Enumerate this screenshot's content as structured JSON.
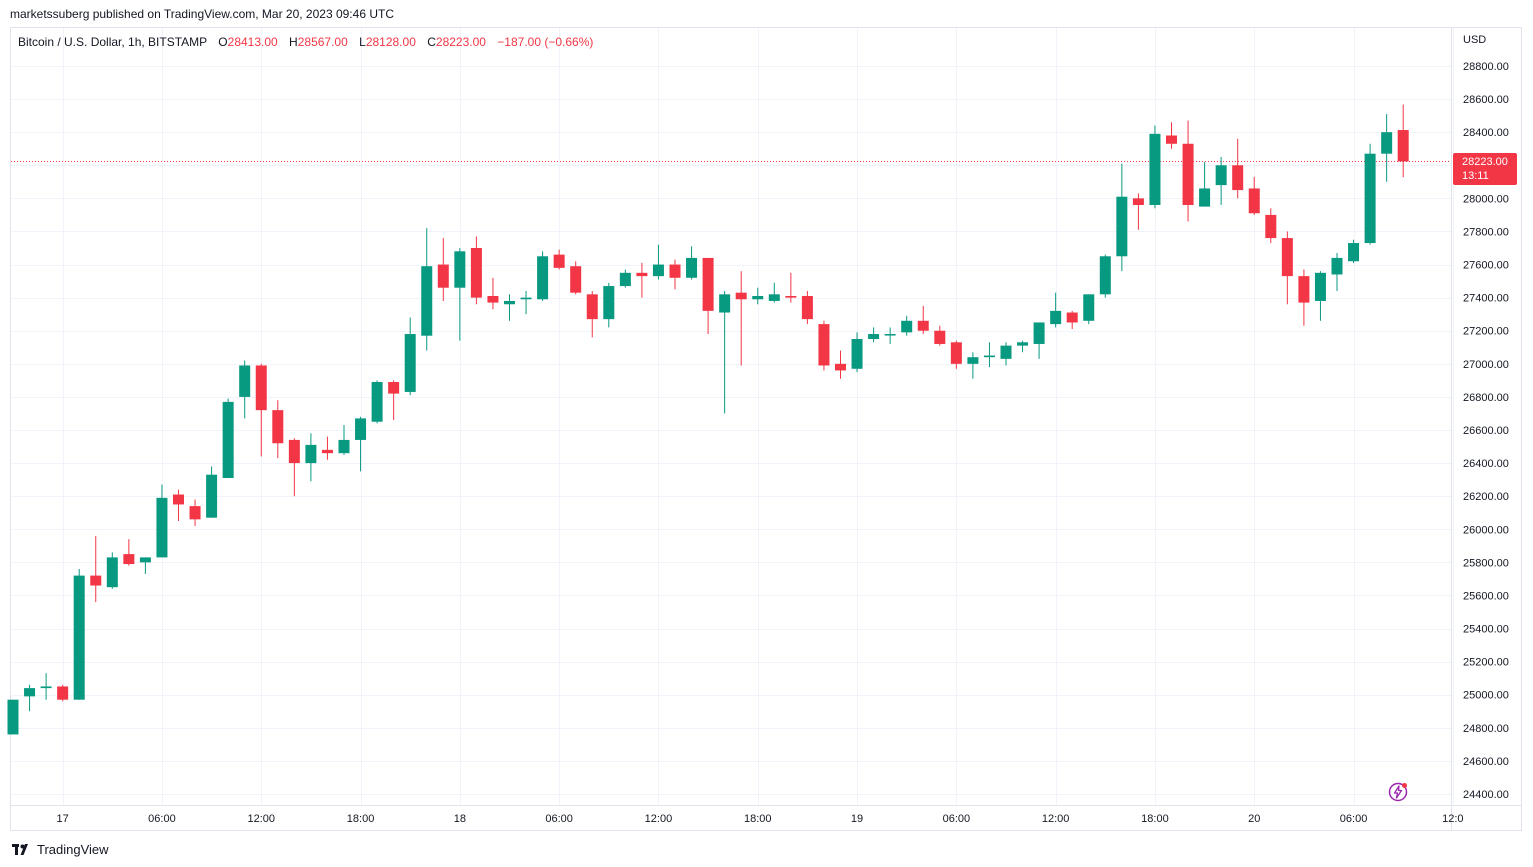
{
  "header": {
    "published_by": "marketssuberg published on TradingView.com, Mar 20, 2023 09:46 UTC"
  },
  "legend": {
    "symbol": "Bitcoin / U.S. Dollar, 1h, BITSTAMP",
    "open_label": "O",
    "open": "28413.00",
    "high_label": "H",
    "high": "28567.00",
    "low_label": "L",
    "low": "28128.00",
    "close_label": "C",
    "close": "28223.00",
    "change": "−187.00 (−0.66%)"
  },
  "price_axis": {
    "currency": "USD",
    "last_price": "28223.00",
    "countdown": "13:11"
  },
  "footer": {
    "brand": "TradingView"
  },
  "icons": {
    "brand_logo": "tradingview-logo-icon",
    "bolt": "lightning-bolt-icon"
  },
  "colors": {
    "up": "#089981",
    "down": "#f23645",
    "grid": "#f0f3fa",
    "last_price_line": "#f23645"
  },
  "chart_data": {
    "type": "candlestick",
    "timeframe": "1h",
    "ylim": [
      24300,
      28950
    ],
    "yticks": [
      24400,
      24600,
      24800,
      25000,
      25200,
      25400,
      25600,
      25800,
      26000,
      26200,
      26400,
      26600,
      26800,
      27000,
      27200,
      27400,
      27600,
      27800,
      28000,
      28200,
      28400,
      28600,
      28800
    ],
    "ytick_labels": [
      "24400.00",
      "24600.00",
      "24800.00",
      "25000.00",
      "25200.00",
      "25400.00",
      "25600.00",
      "25800.00",
      "26000.00",
      "26200.00",
      "26400.00",
      "26600.00",
      "26800.00",
      "27000.00",
      "27200.00",
      "27400.00",
      "27600.00",
      "27800.00",
      "28000.00",
      "28200.00",
      "28400.00",
      "28600.00",
      "28800.00"
    ],
    "xticks": [
      {
        "index": 3,
        "label": "17"
      },
      {
        "index": 9,
        "label": "06:00"
      },
      {
        "index": 15,
        "label": "12:00"
      },
      {
        "index": 21,
        "label": "18:00"
      },
      {
        "index": 27,
        "label": "18"
      },
      {
        "index": 33,
        "label": "06:00"
      },
      {
        "index": 39,
        "label": "12:00"
      },
      {
        "index": 45,
        "label": "18:00"
      },
      {
        "index": 51,
        "label": "19"
      },
      {
        "index": 57,
        "label": "06:00"
      },
      {
        "index": 63,
        "label": "12:00"
      },
      {
        "index": 69,
        "label": "18:00"
      },
      {
        "index": 75,
        "label": "20"
      },
      {
        "index": 81,
        "label": "06:00"
      },
      {
        "index": 87,
        "label": "12:0"
      }
    ],
    "last_price": 28223,
    "candles": [
      {
        "o": 24760,
        "h": 24970,
        "l": 24760,
        "c": 24970
      },
      {
        "o": 24990,
        "h": 25060,
        "l": 24900,
        "c": 25040
      },
      {
        "o": 25040,
        "h": 25130,
        "l": 24970,
        "c": 25050
      },
      {
        "o": 25050,
        "h": 25060,
        "l": 24960,
        "c": 24970
      },
      {
        "o": 24970,
        "h": 25760,
        "l": 24970,
        "c": 25720
      },
      {
        "o": 25720,
        "h": 25960,
        "l": 25560,
        "c": 25660
      },
      {
        "o": 25650,
        "h": 25860,
        "l": 25640,
        "c": 25830
      },
      {
        "o": 25850,
        "h": 25940,
        "l": 25780,
        "c": 25790
      },
      {
        "o": 25800,
        "h": 25830,
        "l": 25730,
        "c": 25830
      },
      {
        "o": 25830,
        "h": 26270,
        "l": 25830,
        "c": 26190
      },
      {
        "o": 26210,
        "h": 26240,
        "l": 26050,
        "c": 26150
      },
      {
        "o": 26140,
        "h": 26180,
        "l": 26020,
        "c": 26060
      },
      {
        "o": 26070,
        "h": 26380,
        "l": 26070,
        "c": 26330
      },
      {
        "o": 26310,
        "h": 26790,
        "l": 26310,
        "c": 26770
      },
      {
        "o": 26800,
        "h": 27020,
        "l": 26670,
        "c": 26990
      },
      {
        "o": 26990,
        "h": 27000,
        "l": 26440,
        "c": 26720
      },
      {
        "o": 26720,
        "h": 26780,
        "l": 26430,
        "c": 26520
      },
      {
        "o": 26540,
        "h": 26550,
        "l": 26200,
        "c": 26400
      },
      {
        "o": 26400,
        "h": 26580,
        "l": 26290,
        "c": 26510
      },
      {
        "o": 26480,
        "h": 26560,
        "l": 26420,
        "c": 26460
      },
      {
        "o": 26460,
        "h": 26630,
        "l": 26450,
        "c": 26540
      },
      {
        "o": 26540,
        "h": 26680,
        "l": 26350,
        "c": 26670
      },
      {
        "o": 26650,
        "h": 26900,
        "l": 26640,
        "c": 26890
      },
      {
        "o": 26890,
        "h": 26900,
        "l": 26660,
        "c": 26820
      },
      {
        "o": 26830,
        "h": 27280,
        "l": 26810,
        "c": 27180
      },
      {
        "o": 27170,
        "h": 27820,
        "l": 27080,
        "c": 27590
      },
      {
        "o": 27600,
        "h": 27760,
        "l": 27380,
        "c": 27460
      },
      {
        "o": 27460,
        "h": 27700,
        "l": 27140,
        "c": 27680
      },
      {
        "o": 27700,
        "h": 27770,
        "l": 27360,
        "c": 27400
      },
      {
        "o": 27410,
        "h": 27520,
        "l": 27330,
        "c": 27370
      },
      {
        "o": 27360,
        "h": 27420,
        "l": 27260,
        "c": 27380
      },
      {
        "o": 27390,
        "h": 27440,
        "l": 27300,
        "c": 27400
      },
      {
        "o": 27390,
        "h": 27680,
        "l": 27380,
        "c": 27650
      },
      {
        "o": 27660,
        "h": 27690,
        "l": 27570,
        "c": 27580
      },
      {
        "o": 27590,
        "h": 27620,
        "l": 27420,
        "c": 27430
      },
      {
        "o": 27420,
        "h": 27440,
        "l": 27160,
        "c": 27270
      },
      {
        "o": 27270,
        "h": 27490,
        "l": 27220,
        "c": 27470
      },
      {
        "o": 27470,
        "h": 27570,
        "l": 27460,
        "c": 27550
      },
      {
        "o": 27550,
        "h": 27610,
        "l": 27400,
        "c": 27530
      },
      {
        "o": 27530,
        "h": 27720,
        "l": 27510,
        "c": 27600
      },
      {
        "o": 27600,
        "h": 27630,
        "l": 27450,
        "c": 27520
      },
      {
        "o": 27520,
        "h": 27710,
        "l": 27510,
        "c": 27640
      },
      {
        "o": 27640,
        "h": 27640,
        "l": 27180,
        "c": 27320
      },
      {
        "o": 27310,
        "h": 27440,
        "l": 26700,
        "c": 27420
      },
      {
        "o": 27430,
        "h": 27560,
        "l": 26990,
        "c": 27390
      },
      {
        "o": 27390,
        "h": 27460,
        "l": 27360,
        "c": 27410
      },
      {
        "o": 27380,
        "h": 27490,
        "l": 27370,
        "c": 27420
      },
      {
        "o": 27410,
        "h": 27550,
        "l": 27370,
        "c": 27400
      },
      {
        "o": 27410,
        "h": 27440,
        "l": 27240,
        "c": 27270
      },
      {
        "o": 27240,
        "h": 27260,
        "l": 26960,
        "c": 26990
      },
      {
        "o": 27000,
        "h": 27080,
        "l": 26910,
        "c": 26960
      },
      {
        "o": 26970,
        "h": 27190,
        "l": 26950,
        "c": 27150
      },
      {
        "o": 27150,
        "h": 27220,
        "l": 27130,
        "c": 27180
      },
      {
        "o": 27180,
        "h": 27220,
        "l": 27120,
        "c": 27180
      },
      {
        "o": 27190,
        "h": 27290,
        "l": 27170,
        "c": 27260
      },
      {
        "o": 27260,
        "h": 27350,
        "l": 27180,
        "c": 27200
      },
      {
        "o": 27200,
        "h": 27230,
        "l": 27110,
        "c": 27120
      },
      {
        "o": 27130,
        "h": 27140,
        "l": 26970,
        "c": 27000
      },
      {
        "o": 27000,
        "h": 27070,
        "l": 26910,
        "c": 27040
      },
      {
        "o": 27040,
        "h": 27130,
        "l": 26980,
        "c": 27050
      },
      {
        "o": 27030,
        "h": 27130,
        "l": 26990,
        "c": 27110
      },
      {
        "o": 27110,
        "h": 27140,
        "l": 27070,
        "c": 27130
      },
      {
        "o": 27120,
        "h": 27250,
        "l": 27030,
        "c": 27250
      },
      {
        "o": 27240,
        "h": 27430,
        "l": 27220,
        "c": 27320
      },
      {
        "o": 27310,
        "h": 27320,
        "l": 27210,
        "c": 27250
      },
      {
        "o": 27260,
        "h": 27420,
        "l": 27240,
        "c": 27420
      },
      {
        "o": 27420,
        "h": 27660,
        "l": 27400,
        "c": 27650
      },
      {
        "o": 27650,
        "h": 28210,
        "l": 27560,
        "c": 28010
      },
      {
        "o": 28000,
        "h": 28030,
        "l": 27810,
        "c": 27960
      },
      {
        "o": 27960,
        "h": 28440,
        "l": 27940,
        "c": 28390
      },
      {
        "o": 28380,
        "h": 28460,
        "l": 28300,
        "c": 28330
      },
      {
        "o": 28330,
        "h": 28470,
        "l": 27860,
        "c": 27960
      },
      {
        "o": 27950,
        "h": 28220,
        "l": 27960,
        "c": 28060
      },
      {
        "o": 28080,
        "h": 28250,
        "l": 27960,
        "c": 28200
      },
      {
        "o": 28200,
        "h": 28360,
        "l": 28000,
        "c": 28050
      },
      {
        "o": 28060,
        "h": 28130,
        "l": 27900,
        "c": 27910
      },
      {
        "o": 27900,
        "h": 27940,
        "l": 27730,
        "c": 27760
      },
      {
        "o": 27760,
        "h": 27800,
        "l": 27360,
        "c": 27530
      },
      {
        "o": 27530,
        "h": 27570,
        "l": 27230,
        "c": 27370
      },
      {
        "o": 27380,
        "h": 27560,
        "l": 27260,
        "c": 27550
      },
      {
        "o": 27540,
        "h": 27670,
        "l": 27440,
        "c": 27640
      },
      {
        "o": 27620,
        "h": 27750,
        "l": 27610,
        "c": 27730
      },
      {
        "o": 27730,
        "h": 28330,
        "l": 27720,
        "c": 28270
      },
      {
        "o": 28270,
        "h": 28510,
        "l": 28100,
        "c": 28400
      },
      {
        "o": 28413,
        "h": 28567,
        "l": 28128,
        "c": 28223
      }
    ]
  }
}
